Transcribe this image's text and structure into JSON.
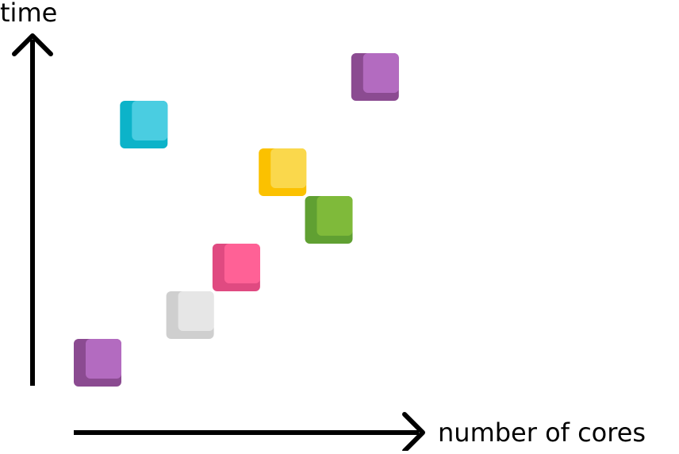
{
  "axes": {
    "y_label": "time",
    "x_label": "number of cores"
  },
  "blocks": [
    {
      "id": "purple-bottom",
      "core": 1,
      "time": 1,
      "color_dark": "#8B4B91",
      "color_light": "#B36BC0"
    },
    {
      "id": "gray",
      "core": 3,
      "time": 2,
      "color_dark": "#CFCFCF",
      "color_light": "#E6E6E6"
    },
    {
      "id": "pink",
      "core": 4,
      "time": 3,
      "color_dark": "#E04A81",
      "color_light": "#FF6196"
    },
    {
      "id": "green",
      "core": 6,
      "time": 4,
      "color_dark": "#60A032",
      "color_light": "#7FBA3A"
    },
    {
      "id": "yellow",
      "core": 5,
      "time": 5,
      "color_dark": "#FBC100",
      "color_light": "#FAD84C"
    },
    {
      "id": "cyan",
      "core": 2,
      "time": 6,
      "color_dark": "#0CB3C9",
      "color_light": "#4ACDE1"
    },
    {
      "id": "purple-top",
      "core": 7,
      "time": 7,
      "color_dark": "#8B4B91",
      "color_light": "#B36BC0"
    }
  ]
}
